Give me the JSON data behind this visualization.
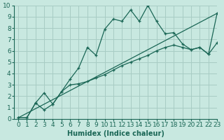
{
  "xlabel": "Humidex (Indice chaleur)",
  "xlim": [
    -0.5,
    23
  ],
  "ylim": [
    0,
    10
  ],
  "xticks": [
    0,
    1,
    2,
    3,
    4,
    5,
    6,
    7,
    8,
    9,
    10,
    11,
    12,
    13,
    14,
    15,
    16,
    17,
    18,
    19,
    20,
    21,
    22,
    23
  ],
  "yticks": [
    0,
    1,
    2,
    3,
    4,
    5,
    6,
    7,
    8,
    9,
    10
  ],
  "bg_color": "#c8e8e0",
  "grid_color": "#a8ccc4",
  "line_color": "#1a6655",
  "series1_x": [
    0,
    1,
    2,
    3,
    4,
    5,
    6,
    7,
    8,
    9,
    10,
    11,
    12,
    13,
    14,
    15,
    16,
    17,
    18,
    19,
    20,
    21,
    22,
    23
  ],
  "series1_y": [
    0.1,
    0.1,
    1.4,
    0.8,
    1.3,
    2.4,
    3.5,
    4.5,
    6.3,
    5.6,
    7.9,
    8.8,
    8.6,
    9.6,
    8.6,
    10.0,
    8.6,
    7.5,
    7.6,
    6.6,
    6.1,
    6.3,
    5.7,
    9.3
  ],
  "series2_x": [
    0,
    1,
    2,
    3,
    4,
    5,
    6,
    7,
    8,
    9,
    10,
    11,
    12,
    13,
    14,
    15,
    16,
    17,
    18,
    19,
    20,
    21,
    22,
    23
  ],
  "series2_y": [
    0.1,
    0.1,
    1.4,
    2.3,
    1.3,
    2.4,
    3.0,
    3.1,
    3.3,
    3.6,
    3.9,
    4.3,
    4.7,
    5.0,
    5.3,
    5.6,
    6.0,
    6.3,
    6.5,
    6.3,
    6.1,
    6.3,
    5.7,
    6.7
  ],
  "series3_x": [
    0,
    23
  ],
  "series3_y": [
    0.1,
    9.3
  ],
  "font_size_xlabel": 7,
  "font_size_ticks": 6.5
}
